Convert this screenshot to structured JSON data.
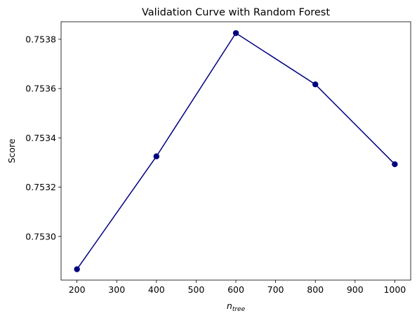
{
  "chart_data": {
    "type": "line",
    "title": "Validation Curve with Random Forest",
    "xlabel_main": "n",
    "xlabel_sub": "tree",
    "ylabel": "Score",
    "x": [
      200,
      400,
      600,
      800,
      1000
    ],
    "series": [
      {
        "values": [
          0.752867,
          0.753325,
          0.753825,
          0.753617,
          0.753293
        ]
      }
    ],
    "xticks": [
      200,
      300,
      400,
      500,
      600,
      700,
      800,
      900,
      1000
    ],
    "yticks": [
      0.753,
      0.7532,
      0.7534,
      0.7536,
      0.7538
    ],
    "ytick_labels": [
      "0.7530",
      "0.7532",
      "0.7534",
      "0.7536",
      "0.7538"
    ],
    "xlim": [
      160,
      1040
    ],
    "ylim": [
      0.752823,
      0.753871
    ],
    "grid": false,
    "line_color": "#000080",
    "marker": "circle"
  }
}
